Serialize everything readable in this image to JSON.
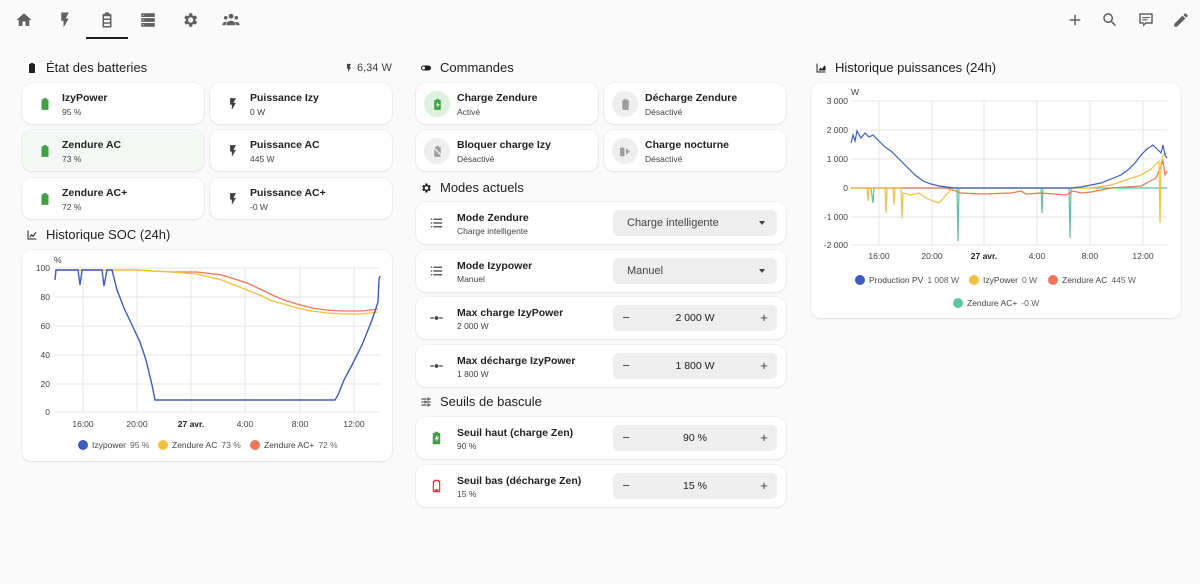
{
  "nav": {
    "items": [
      {
        "name": "home-icon"
      },
      {
        "name": "lightning-icon"
      },
      {
        "name": "battery-icon",
        "active": true
      },
      {
        "name": "server-icon"
      },
      {
        "name": "gear-icon"
      },
      {
        "name": "users-icon"
      }
    ],
    "actions": [
      "plus-icon",
      "search-icon",
      "comment-icon",
      "pencil-icon"
    ]
  },
  "colors": {
    "green": "#43a047",
    "blue": "#3e5bc2",
    "yellow": "#f2c03d",
    "orange": "#ef7458",
    "teal": "#5cc3a4",
    "red": "#e53935"
  },
  "batteries": {
    "title": "État des batteries",
    "total": "6,34 W",
    "tiles": [
      {
        "name": "IzyPower",
        "state": "95 %"
      },
      {
        "name": "Puissance Izy",
        "state": "0 W"
      },
      {
        "name": "Zendure AC",
        "state": "73 %"
      },
      {
        "name": "Puissance AC",
        "state": "445 W"
      },
      {
        "name": "Zendure AC+",
        "state": "72 %"
      },
      {
        "name": "Puissance AC+",
        "state": "-0 W"
      }
    ]
  },
  "soc": {
    "title": "Historique SOC (24h)",
    "unit": "%",
    "yticks": [
      "100",
      "80",
      "60",
      "40",
      "20",
      "0"
    ],
    "xticks": [
      "16:00",
      "20:00",
      "27 avr.",
      "4:00",
      "8:00",
      "12:00"
    ],
    "legend": [
      {
        "name": "Izypower",
        "value": "95 %"
      },
      {
        "name": "Zendure AC",
        "value": "73 %"
      },
      {
        "name": "Zendure AC+",
        "value": "72 %"
      }
    ]
  },
  "commands": {
    "title": "Commandes",
    "items": [
      {
        "name": "Charge Zendure",
        "state": "Activé"
      },
      {
        "name": "Décharge Zendure",
        "state": "Désactivé"
      },
      {
        "name": "Bloquer charge Izy",
        "state": "Désactivé"
      },
      {
        "name": "Charge nocturne",
        "state": "Désactivé"
      }
    ]
  },
  "modes": {
    "title": "Modes actuels",
    "rows": [
      {
        "name": "Mode Zendure",
        "state": "Charge intelligente",
        "select": "Charge intelligente"
      },
      {
        "name": "Mode Izypower",
        "state": "Manuel",
        "select": "Manuel"
      },
      {
        "name": "Max charge IzyPower",
        "state": "2 000 W",
        "value": "2 000 W"
      },
      {
        "name": "Max décharge IzyPower",
        "state": "1 800 W",
        "value": "1 800 W"
      }
    ]
  },
  "thresholds": {
    "title": "Seuils de bascule",
    "rows": [
      {
        "name": "Seuil haut (charge Zen)",
        "state": "90 %",
        "value": "90 %"
      },
      {
        "name": "Seuil bas (décharge Zen)",
        "state": "15 %",
        "value": "15 %"
      }
    ]
  },
  "stepper": {
    "minus": "−",
    "plus": "+"
  },
  "power": {
    "title": "Historique puissances (24h)",
    "unit": "W",
    "yticks": [
      "3 000",
      "2 000",
      "1 000",
      "0",
      "-1 000",
      "-2 000"
    ],
    "xticks": [
      "16:00",
      "20:00",
      "27 avr.",
      "4:00",
      "8:00",
      "12:00"
    ],
    "legend": [
      {
        "name": "Production PV",
        "value": "1 008 W"
      },
      {
        "name": "IzyPower",
        "value": "0 W"
      },
      {
        "name": "Zendure AC",
        "value": "445 W"
      },
      {
        "name": "Zendure AC+",
        "value": "-0 W"
      }
    ]
  }
}
